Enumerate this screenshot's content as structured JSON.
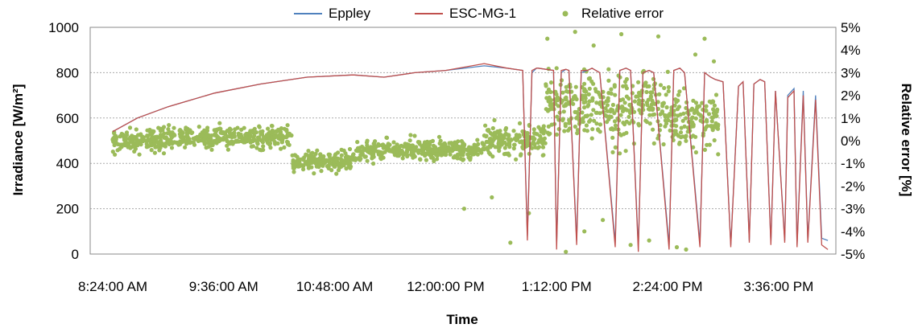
{
  "chart_data": {
    "type": "line",
    "title": "",
    "xlabel": "Time",
    "ylabel_left": "Irradiance [W/m²]",
    "ylabel_right": "Relative error [%]",
    "x_range": [
      "8:24:00 AM",
      "3:36:00 PM"
    ],
    "x_ticks": [
      "8:24:00 AM",
      "9:36:00 AM",
      "10:48:00 AM",
      "12:00:00 PM",
      "1:12:00 PM",
      "2:24:00 PM",
      "3:36:00 PM"
    ],
    "y_left_range": [
      0,
      1000
    ],
    "y_left_ticks": [
      "0",
      "200",
      "400",
      "600",
      "800",
      "1000"
    ],
    "y_right_range": [
      -5,
      5
    ],
    "y_right_ticks": [
      "-5%",
      "-4%",
      "-3%",
      "-2%",
      "-1%",
      "0%",
      "1%",
      "2%",
      "3%",
      "4%",
      "5%"
    ],
    "grid": true,
    "legend_position": "top",
    "series": [
      {
        "name": "Eppley",
        "type": "line",
        "color": "#4F81BD",
        "axis": "left",
        "x": [
          "8:24 AM",
          "8:40 AM",
          "9:00 AM",
          "9:30 AM",
          "10:00 AM",
          "10:30 AM",
          "11:00 AM",
          "11:20 AM",
          "11:40 AM",
          "12:00 PM",
          "12:25 PM",
          "12:40 PM",
          "12:50 PM",
          "12:53 PM",
          "12:56 PM",
          "12:59 PM",
          "1:00 PM",
          "1:10 PM",
          "1:12 PM",
          "1:15 PM",
          "1:18 PM",
          "1:20 PM",
          "1:25 PM",
          "1:28 PM",
          "1:32 PM",
          "1:35 PM",
          "1:40 PM",
          "1:50 PM",
          "1:53 PM",
          "1:57 PM",
          "2:00 PM",
          "2:05 PM",
          "2:08 PM",
          "2:12 PM",
          "2:15 PM",
          "2:25 PM",
          "2:28 PM",
          "2:32 PM",
          "2:35 PM",
          "2:45 PM",
          "2:48 PM",
          "2:52 PM",
          "2:55 PM",
          "3:00 PM",
          "3:05 PM",
          "3:10 PM",
          "3:13 PM",
          "3:17 PM",
          "3:20 PM",
          "3:24 PM",
          "3:27 PM",
          "3:31 PM",
          "3:34 PM",
          "3:40 PM",
          "3:42 PM",
          "3:46 PM",
          "3:48 PM",
          "3:52 PM",
          "3:55 PM",
          "4:00 PM",
          "4:04 PM",
          "4:08 PM"
        ],
        "y": [
          540,
          600,
          650,
          710,
          750,
          780,
          790,
          780,
          800,
          810,
          830,
          820,
          810,
          80,
          800,
          820,
          820,
          810,
          40,
          800,
          815,
          810,
          60,
          800,
          810,
          820,
          800,
          50,
          810,
          820,
          810,
          30,
          800,
          810,
          800,
          40,
          810,
          820,
          800,
          50,
          800,
          780,
          770,
          760,
          40,
          740,
          760,
          60,
          750,
          770,
          760,
          50,
          720,
          60,
          700,
          730,
          40,
          720,
          60,
          700,
          70,
          60
        ]
      },
      {
        "name": "ESC-MG-1",
        "type": "line",
        "color": "#C0504D",
        "axis": "left",
        "x": [
          "8:24 AM",
          "8:40 AM",
          "9:00 AM",
          "9:30 AM",
          "10:00 AM",
          "10:30 AM",
          "11:00 AM",
          "11:20 AM",
          "11:40 AM",
          "12:00 PM",
          "12:25 PM",
          "12:40 PM",
          "12:50 PM",
          "12:53 PM",
          "12:56 PM",
          "12:59 PM",
          "1:00 PM",
          "1:10 PM",
          "1:12 PM",
          "1:15 PM",
          "1:18 PM",
          "1:20 PM",
          "1:25 PM",
          "1:28 PM",
          "1:32 PM",
          "1:35 PM",
          "1:40 PM",
          "1:50 PM",
          "1:53 PM",
          "1:57 PM",
          "2:00 PM",
          "2:05 PM",
          "2:08 PM",
          "2:12 PM",
          "2:15 PM",
          "2:25 PM",
          "2:28 PM",
          "2:32 PM",
          "2:35 PM",
          "2:45 PM",
          "2:48 PM",
          "2:52 PM",
          "2:55 PM",
          "3:00 PM",
          "3:05 PM",
          "3:10 PM",
          "3:13 PM",
          "3:17 PM",
          "3:20 PM",
          "3:24 PM",
          "3:27 PM",
          "3:31 PM",
          "3:34 PM",
          "3:40 PM",
          "3:42 PM",
          "3:46 PM",
          "3:48 PM",
          "3:52 PM",
          "3:55 PM",
          "4:00 PM",
          "4:04 PM",
          "4:08 PM"
        ],
        "y": [
          540,
          600,
          650,
          710,
          750,
          780,
          790,
          780,
          800,
          810,
          840,
          820,
          810,
          60,
          810,
          820,
          820,
          810,
          20,
          810,
          815,
          810,
          40,
          810,
          810,
          820,
          800,
          30,
          810,
          820,
          810,
          10,
          800,
          810,
          800,
          20,
          810,
          820,
          800,
          30,
          800,
          780,
          770,
          760,
          30,
          740,
          760,
          50,
          750,
          770,
          760,
          40,
          720,
          50,
          690,
          720,
          30,
          700,
          50,
          680,
          40,
          20
        ]
      },
      {
        "name": "Relative error",
        "type": "scatter",
        "color": "#9BBB59",
        "axis": "right",
        "y_unit": "%",
        "clusters": [
          {
            "x_range": [
              "8:24 AM",
              "9:00 AM"
            ],
            "center": 0.0,
            "spread": 0.55
          },
          {
            "x_range": [
              "9:00 AM",
              "10:20 AM"
            ],
            "center": 0.15,
            "spread": 0.55
          },
          {
            "x_range": [
              "10:20 AM",
              "11:00 AM"
            ],
            "center": -0.9,
            "spread": 0.5
          },
          {
            "x_range": [
              "11:00 AM",
              "11:20 AM"
            ],
            "center": -0.5,
            "spread": 0.6
          },
          {
            "x_range": [
              "11:20 AM",
              "12:25 PM"
            ],
            "center": -0.4,
            "spread": 0.5
          },
          {
            "x_range": [
              "12:25 PM",
              "1:05 PM"
            ],
            "center": 0.0,
            "spread": 0.8
          },
          {
            "x_range": [
              "1:05 PM",
              "2:25 PM"
            ],
            "center": 1.5,
            "spread": 1.8
          },
          {
            "x_range": [
              "2:25 PM",
              "2:57 PM"
            ],
            "center": 1.0,
            "spread": 1.5
          }
        ],
        "outliers": [
          [
            12.5,
            -2.5
          ],
          [
            12.7,
            -4.5
          ],
          [
            12.9,
            -3.2
          ],
          [
            13.1,
            4.5
          ],
          [
            13.3,
            -4.9
          ],
          [
            13.5,
            -4.0
          ],
          [
            13.7,
            -3.5
          ],
          [
            14.0,
            -4.6
          ],
          [
            14.2,
            -4.4
          ],
          [
            14.5,
            -4.7
          ],
          [
            13.4,
            4.8
          ],
          [
            13.6,
            4.2
          ],
          [
            13.9,
            4.7
          ],
          [
            14.3,
            4.6
          ],
          [
            14.7,
            3.8
          ],
          [
            14.9,
            3.5
          ],
          [
            14.8,
            4.5
          ],
          [
            13.2,
            3.2
          ],
          [
            14.6,
            -4.8
          ],
          [
            12.2,
            -3.0
          ]
        ]
      }
    ]
  }
}
